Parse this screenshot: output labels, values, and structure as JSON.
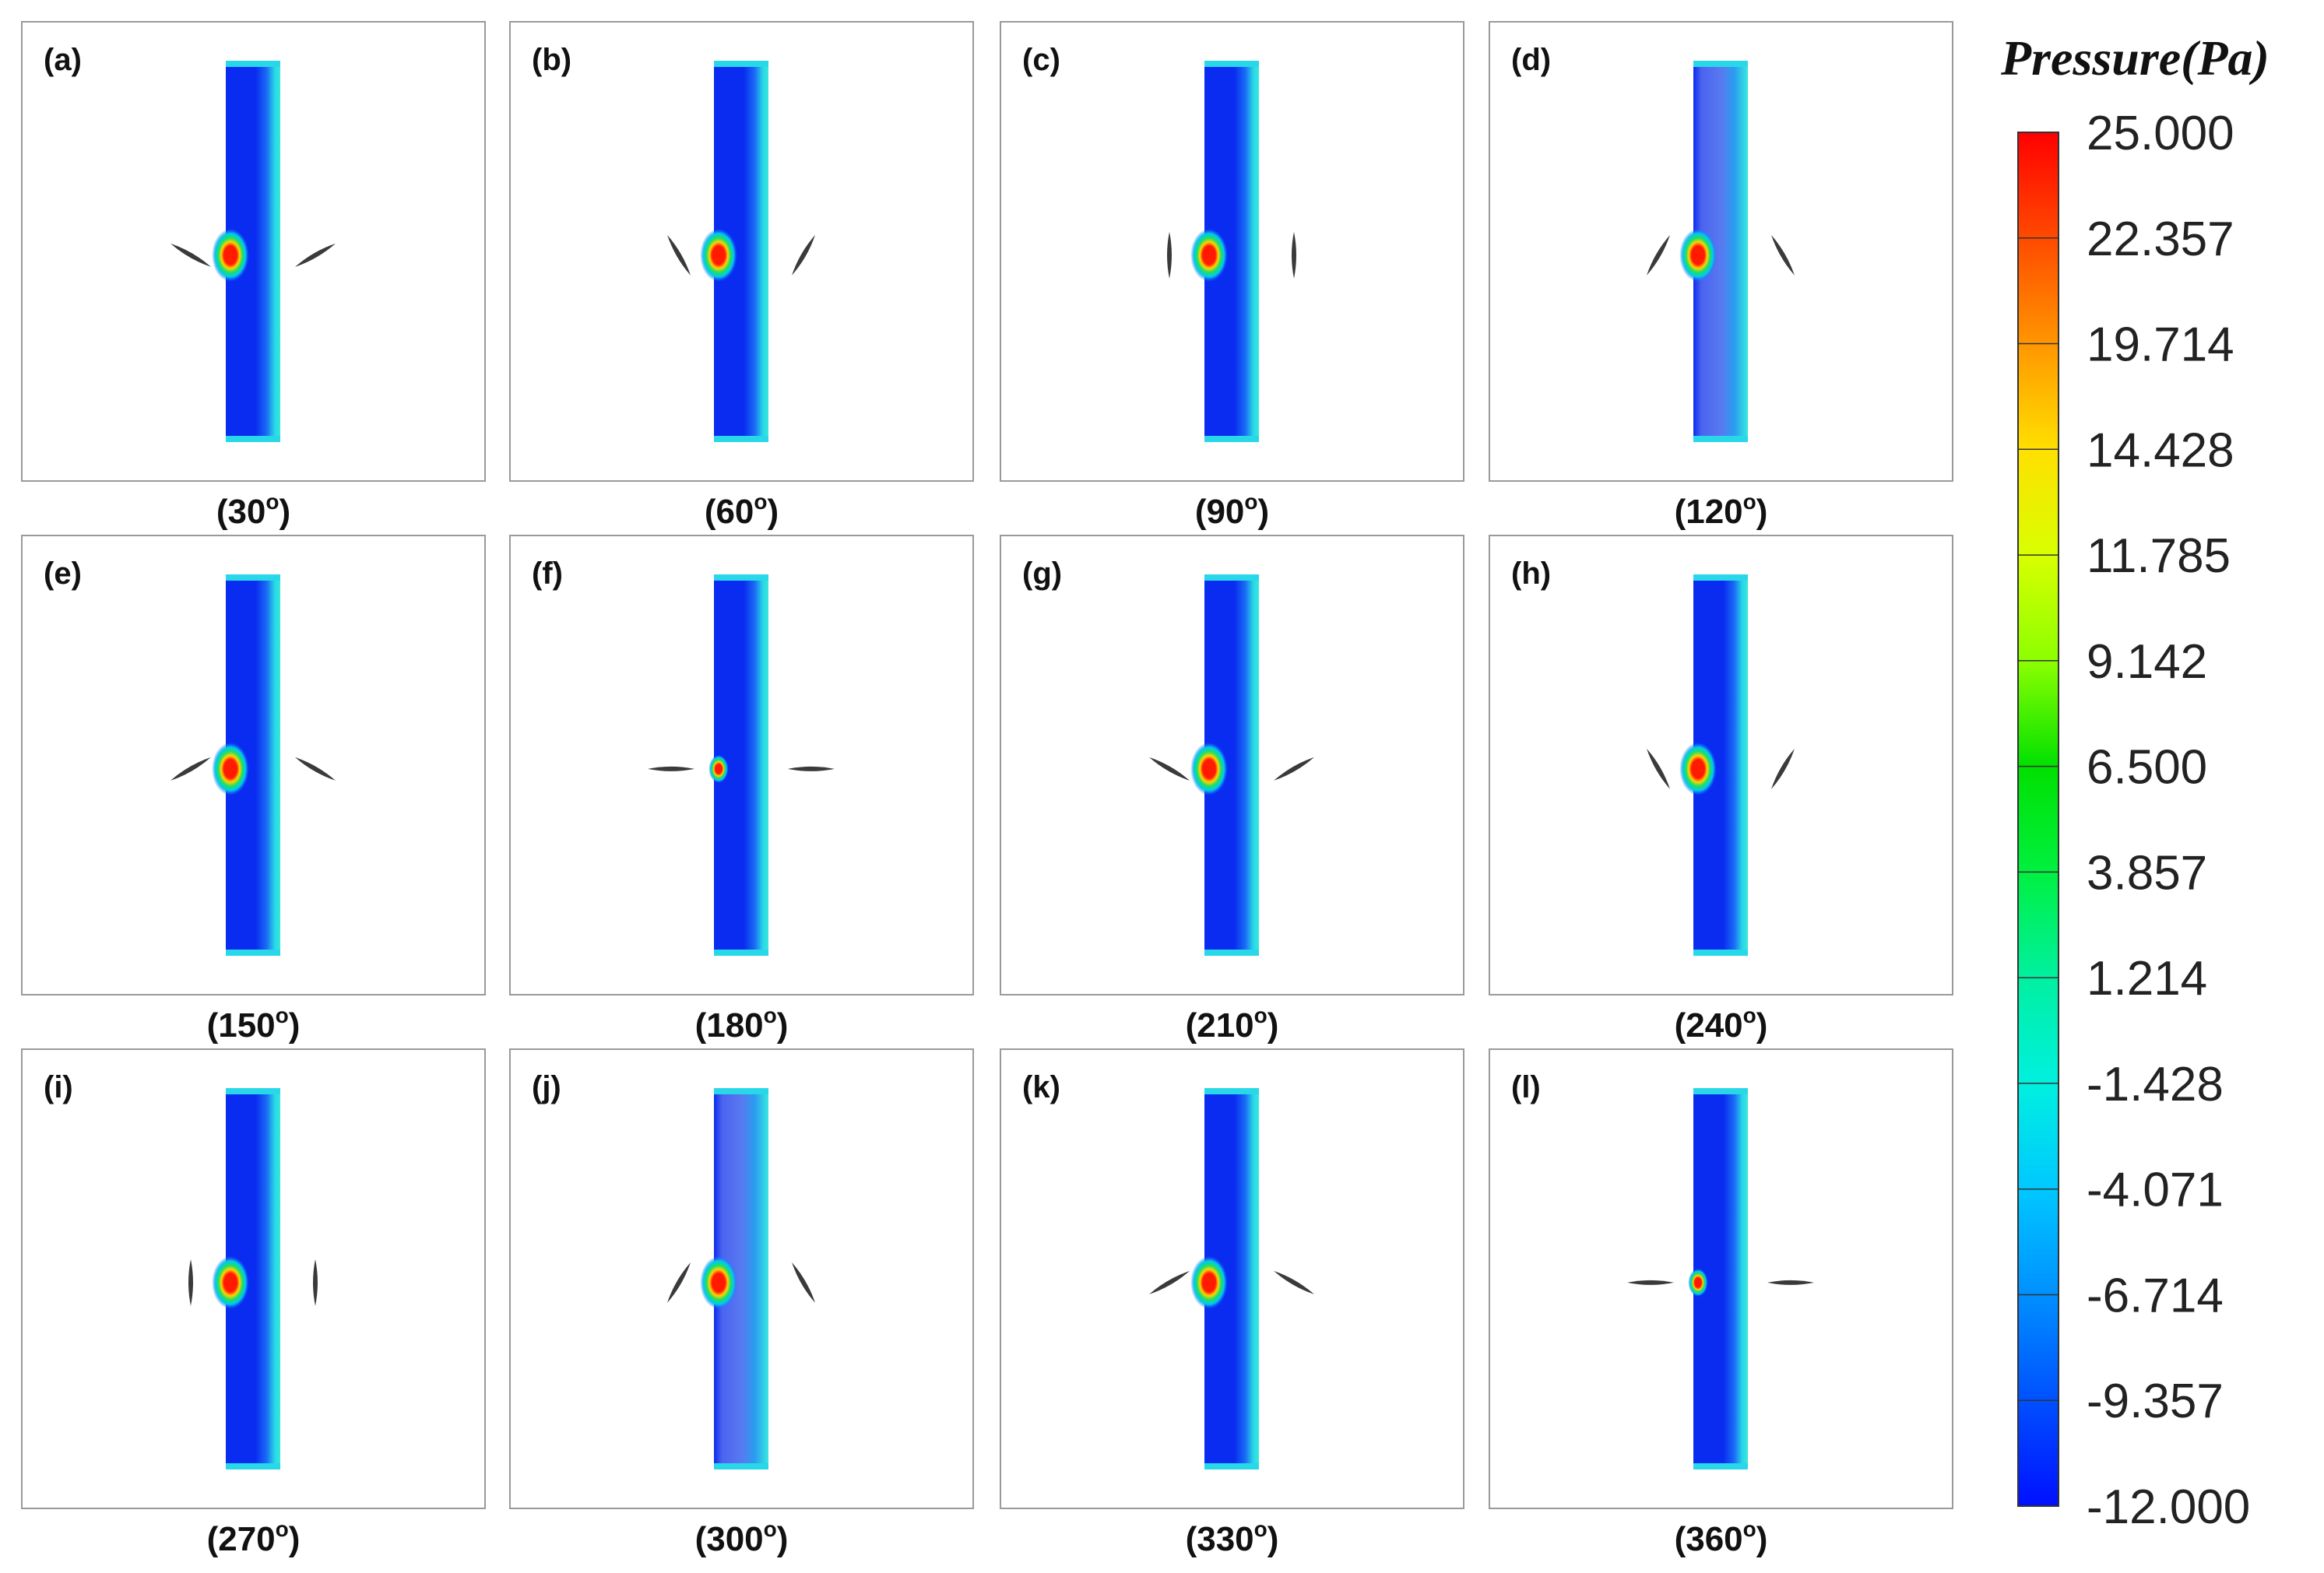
{
  "figure": {
    "colorbar": {
      "title": "Pressure(Pa)",
      "ticks": [
        "25.000",
        "22.357",
        "19.714",
        "14.428",
        "11.785",
        "9.142",
        "6.500",
        "3.857",
        "1.214",
        "-1.428",
        "-4.071",
        "-6.714",
        "-9.357",
        "-12.000"
      ],
      "colors": [
        "#ff0000",
        "#ff4a00",
        "#ff9600",
        "#ffe000",
        "#d8ff00",
        "#8cff00",
        "#00e000",
        "#00f040",
        "#00f0a0",
        "#00f0e0",
        "#00c8ff",
        "#0090ff",
        "#0050ff",
        "#0010ff"
      ]
    },
    "panels": [
      {
        "letter": "(a)",
        "angle": "(30",
        "blade_deg": 30
      },
      {
        "letter": "(b)",
        "angle": "(60",
        "blade_deg": 60
      },
      {
        "letter": "(c)",
        "angle": "(90",
        "blade_deg": 90
      },
      {
        "letter": "(d)",
        "angle": "(120",
        "blade_deg": 120
      },
      {
        "letter": "(e)",
        "angle": "(150",
        "blade_deg": 150
      },
      {
        "letter": "(f)",
        "angle": "(180",
        "blade_deg": 180
      },
      {
        "letter": "(g)",
        "angle": "(210",
        "blade_deg": 210
      },
      {
        "letter": "(h)",
        "angle": "(240",
        "blade_deg": 240
      },
      {
        "letter": "(i)",
        "angle": "(270",
        "blade_deg": 270
      },
      {
        "letter": "(j)",
        "angle": "(300",
        "blade_deg": 300
      },
      {
        "letter": "(k)",
        "angle": "(330",
        "blade_deg": 330
      },
      {
        "letter": "(l)",
        "angle": "(360",
        "blade_deg": 360
      }
    ],
    "degree_symbol": "o",
    "closing_paren": ")",
    "contour_colors": {
      "channel_low": "#0a2cf0",
      "channel_mid": "#1a6cf5",
      "channel_wall": "#28d8e8",
      "channel_wall_light": "#38e8d8",
      "pale_region": "#5a6cf0",
      "hot_core": "#ff1a00",
      "hot_ring1": "#ffd400",
      "hot_ring2": "#20e060",
      "hot_ring3": "#00c8f0",
      "blade": "#3a3a3a"
    }
  }
}
